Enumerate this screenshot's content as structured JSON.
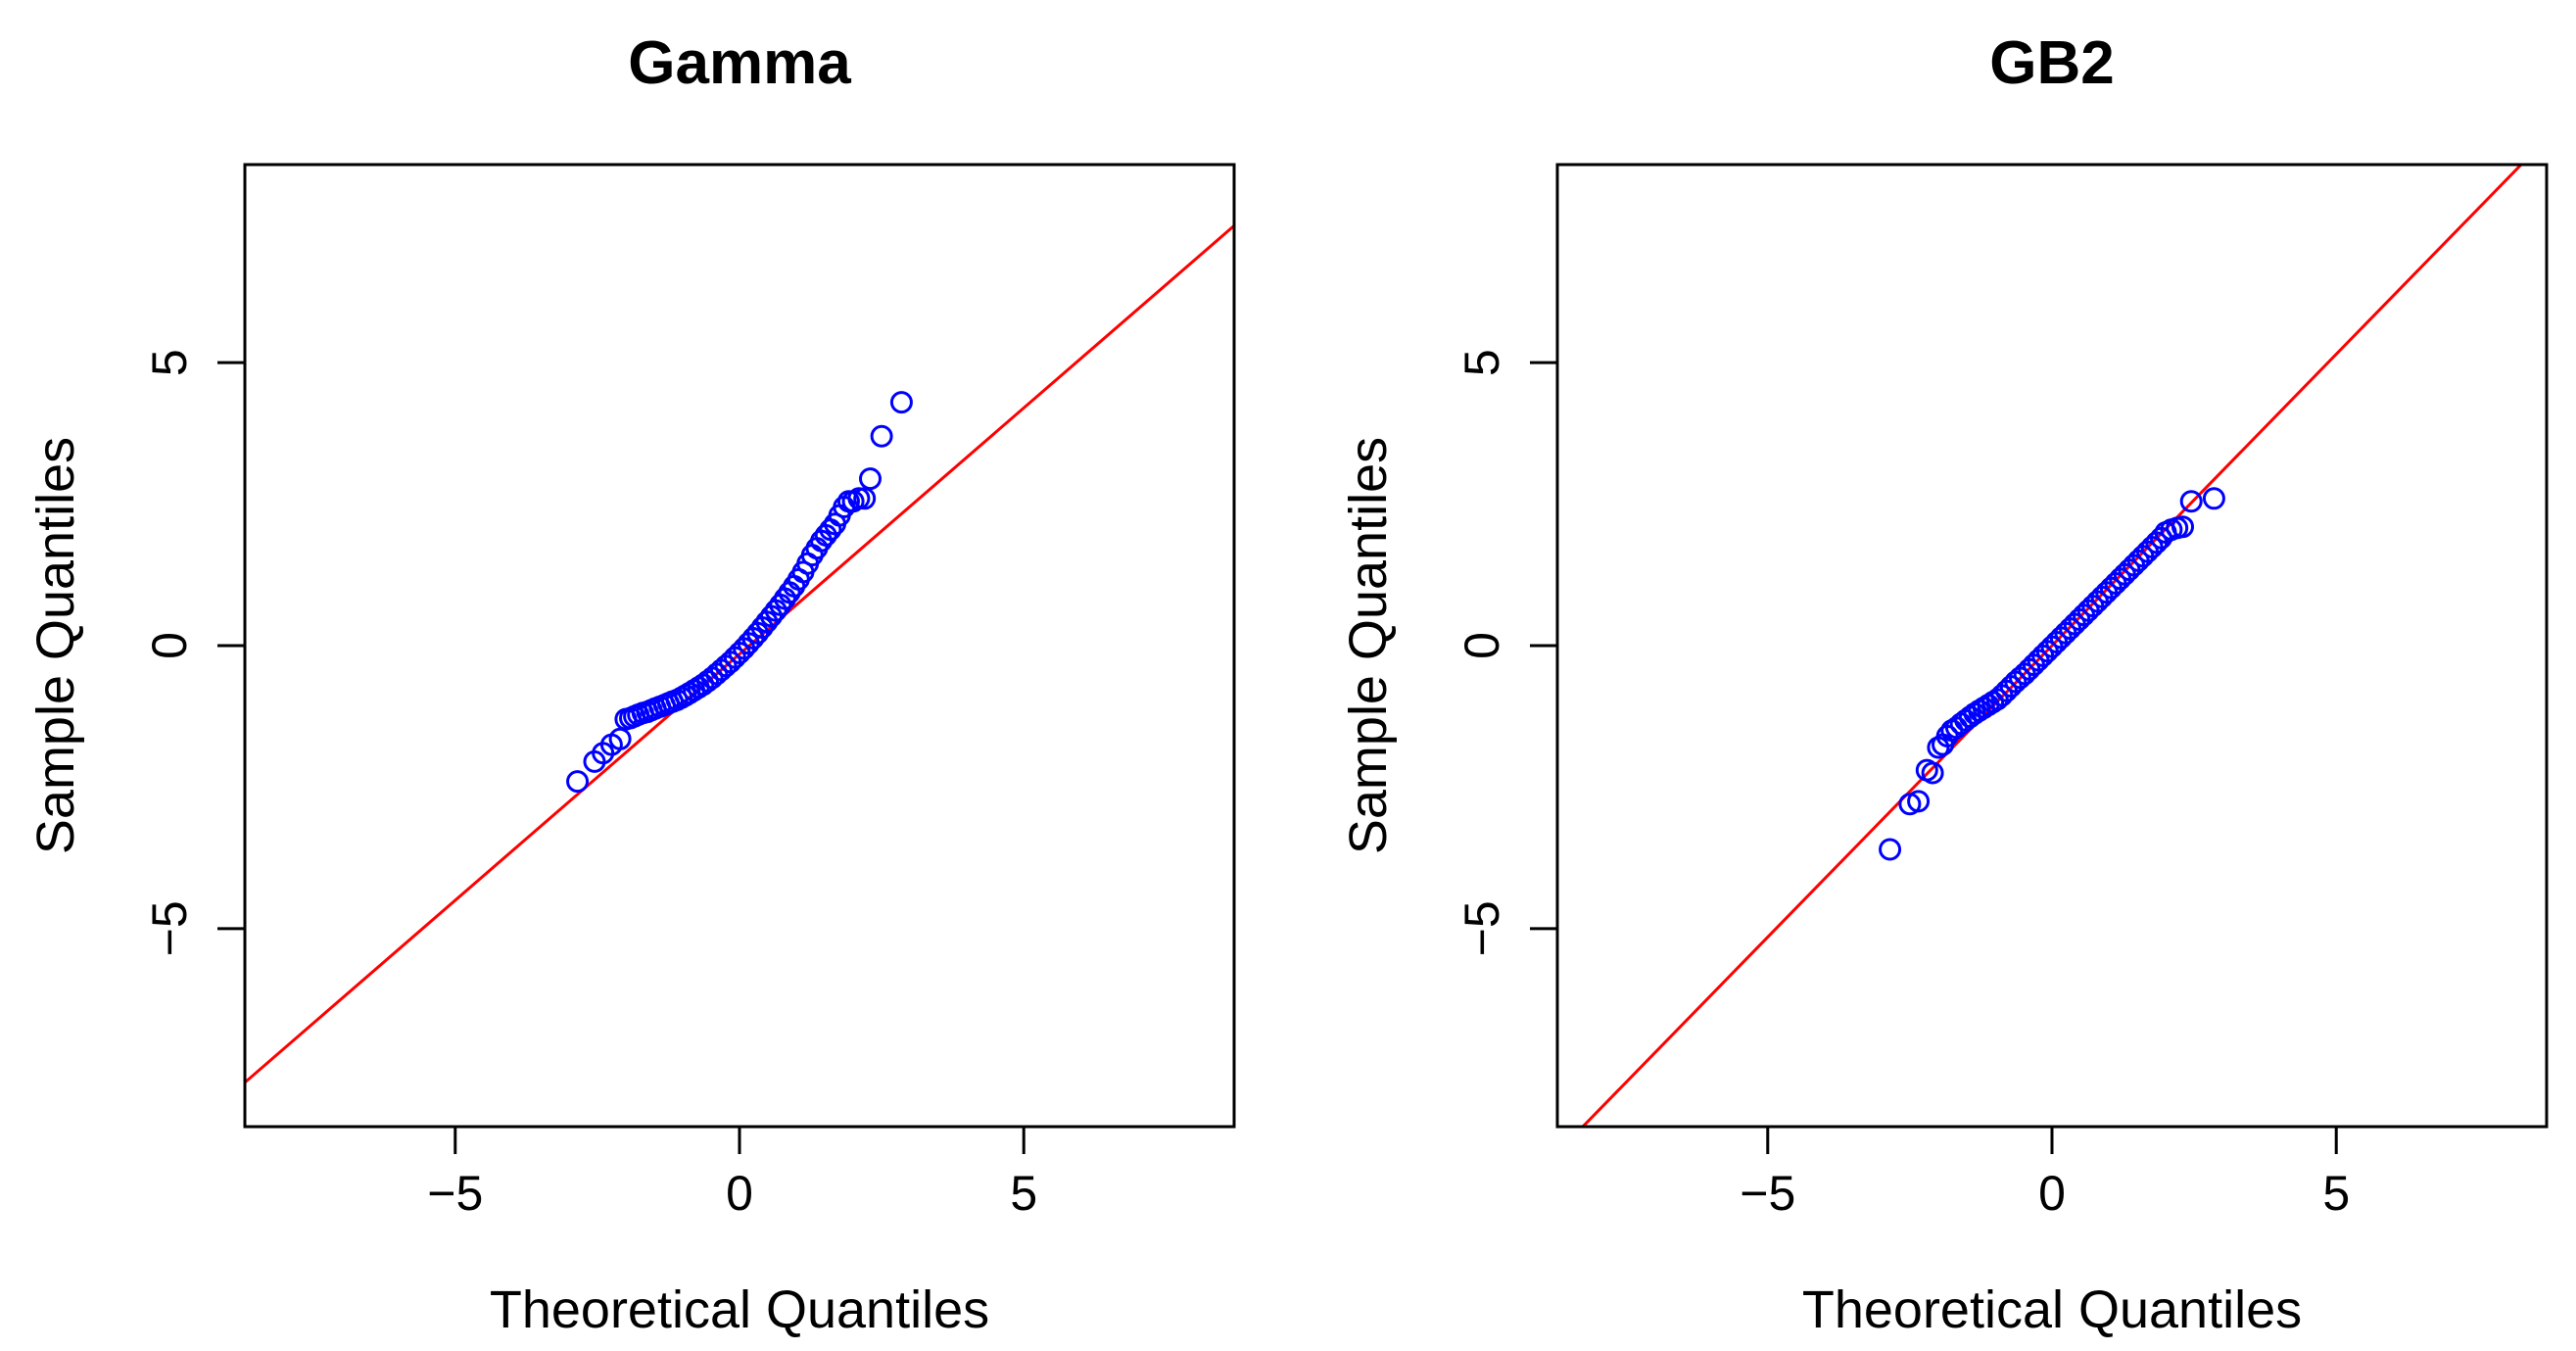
{
  "chart_data": [
    {
      "type": "scatter",
      "title": "Gamma",
      "xlabel": "Theoretical Quantiles",
      "ylabel": "Sample Quantiles",
      "xlim": [
        -8.7,
        8.7
      ],
      "ylim": [
        -8.5,
        8.5
      ],
      "xticks": [
        -5,
        0,
        5
      ],
      "xtick_labels": [
        "−5",
        "0",
        "5"
      ],
      "yticks": [
        -5,
        0,
        5
      ],
      "ytick_labels": [
        "−5",
        "0",
        "5"
      ],
      "grid": false,
      "point_color": "#0000ff",
      "line_color": "#ff0000",
      "reference_line": {
        "intercept": -0.15,
        "slope": 0.87
      },
      "points": {
        "x": [
          -2.85,
          -2.55,
          -2.4,
          -2.25,
          -2.1,
          -2.0,
          -1.92,
          -1.85,
          -1.78,
          -1.7,
          -1.62,
          -1.55,
          -1.48,
          -1.4,
          -1.32,
          -1.25,
          -1.18,
          -1.1,
          -1.02,
          -0.95,
          -0.88,
          -0.8,
          -0.72,
          -0.64,
          -0.56,
          -0.48,
          -0.4,
          -0.32,
          -0.24,
          -0.16,
          -0.08,
          0.0,
          0.08,
          0.16,
          0.24,
          0.32,
          0.4,
          0.48,
          0.56,
          0.64,
          0.72,
          0.8,
          0.88,
          0.96,
          1.04,
          1.12,
          1.2,
          1.28,
          1.36,
          1.44,
          1.52,
          1.6,
          1.68,
          1.76,
          1.84,
          1.92,
          2.0,
          2.1,
          2.2,
          2.3,
          2.5,
          2.85
        ],
        "y": [
          -2.4,
          -2.05,
          -1.9,
          -1.75,
          -1.65,
          -1.3,
          -1.28,
          -1.25,
          -1.22,
          -1.19,
          -1.17,
          -1.14,
          -1.11,
          -1.08,
          -1.05,
          -1.02,
          -0.99,
          -0.96,
          -0.92,
          -0.88,
          -0.84,
          -0.79,
          -0.74,
          -0.69,
          -0.63,
          -0.57,
          -0.5,
          -0.43,
          -0.36,
          -0.29,
          -0.21,
          -0.13,
          -0.05,
          0.04,
          0.13,
          0.22,
          0.32,
          0.42,
          0.52,
          0.62,
          0.72,
          0.83,
          0.94,
          1.05,
          1.17,
          1.3,
          1.45,
          1.6,
          1.72,
          1.85,
          1.95,
          2.05,
          2.15,
          2.3,
          2.45,
          2.55,
          2.55,
          2.6,
          2.6,
          2.95,
          3.7,
          4.3
        ]
      }
    },
    {
      "type": "scatter",
      "title": "GB2",
      "xlabel": "Theoretical Quantiles",
      "ylabel": "Sample Quantiles",
      "xlim": [
        -8.7,
        8.7
      ],
      "ylim": [
        -8.5,
        8.5
      ],
      "xticks": [
        -5,
        0,
        5
      ],
      "xtick_labels": [
        "−5",
        "0",
        "5"
      ],
      "yticks": [
        -5,
        0,
        5
      ],
      "ytick_labels": [
        "−5",
        "0",
        "5"
      ],
      "grid": false,
      "point_color": "#0000ff",
      "line_color": "#ff0000",
      "reference_line": {
        "intercept": 0.0,
        "slope": 1.03
      },
      "points": {
        "x": [
          -2.85,
          -2.5,
          -2.35,
          -2.2,
          -2.1,
          -2.0,
          -1.92,
          -1.84,
          -1.76,
          -1.68,
          -1.6,
          -1.52,
          -1.44,
          -1.36,
          -1.28,
          -1.2,
          -1.12,
          -1.04,
          -0.96,
          -0.88,
          -0.8,
          -0.72,
          -0.64,
          -0.56,
          -0.48,
          -0.4,
          -0.32,
          -0.24,
          -0.16,
          -0.08,
          0.0,
          0.08,
          0.16,
          0.24,
          0.32,
          0.4,
          0.48,
          0.56,
          0.64,
          0.72,
          0.8,
          0.88,
          0.96,
          1.04,
          1.12,
          1.2,
          1.28,
          1.36,
          1.44,
          1.52,
          1.6,
          1.68,
          1.76,
          1.84,
          1.92,
          2.0,
          2.1,
          2.2,
          2.3,
          2.45,
          2.85
        ],
        "y": [
          -3.6,
          -2.8,
          -2.75,
          -2.2,
          -2.25,
          -1.8,
          -1.75,
          -1.6,
          -1.5,
          -1.45,
          -1.38,
          -1.32,
          -1.26,
          -1.2,
          -1.15,
          -1.1,
          -1.05,
          -1.0,
          -0.95,
          -0.88,
          -0.8,
          -0.72,
          -0.64,
          -0.57,
          -0.5,
          -0.42,
          -0.34,
          -0.26,
          -0.18,
          -0.1,
          -0.02,
          0.06,
          0.14,
          0.22,
          0.3,
          0.38,
          0.46,
          0.54,
          0.62,
          0.7,
          0.78,
          0.86,
          0.94,
          1.02,
          1.1,
          1.18,
          1.26,
          1.34,
          1.42,
          1.5,
          1.58,
          1.66,
          1.74,
          1.82,
          1.9,
          2.0,
          2.05,
          2.08,
          2.1,
          2.55,
          2.6
        ]
      }
    }
  ]
}
